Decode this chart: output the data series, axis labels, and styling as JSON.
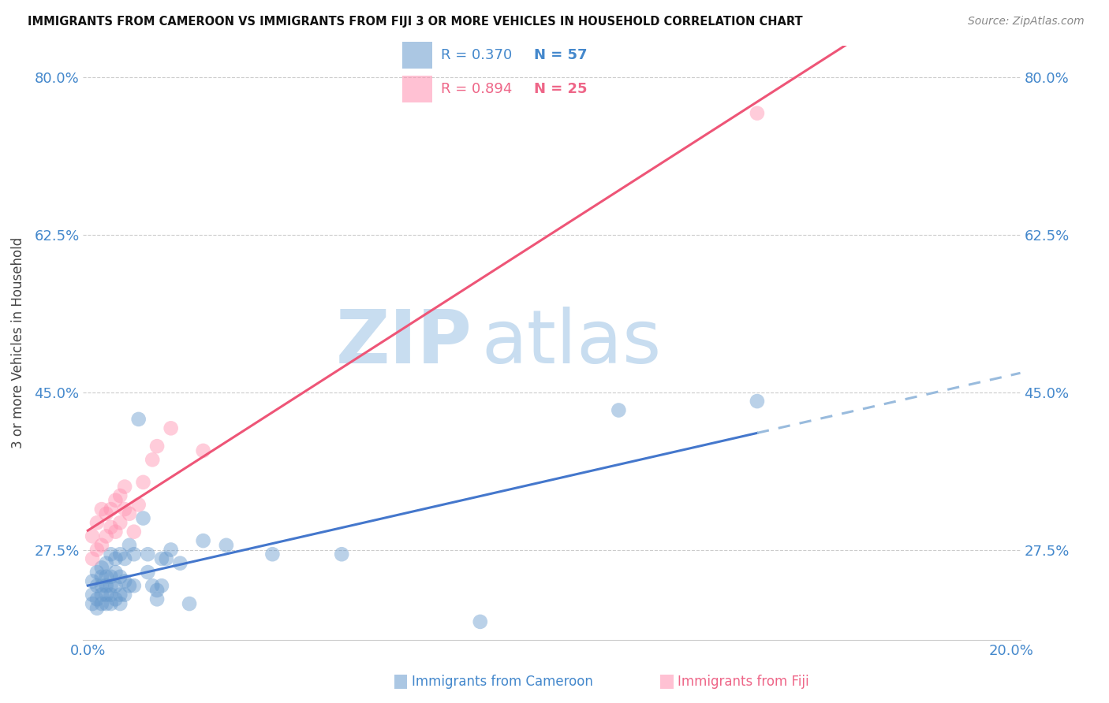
{
  "title": "IMMIGRANTS FROM CAMEROON VS IMMIGRANTS FROM FIJI 3 OR MORE VEHICLES IN HOUSEHOLD CORRELATION CHART",
  "source": "Source: ZipAtlas.com",
  "ylabel": "3 or more Vehicles in Household",
  "xlim": [
    -0.001,
    0.202
  ],
  "ylim": [
    0.175,
    0.835
  ],
  "yticks": [
    0.275,
    0.45,
    0.625,
    0.8
  ],
  "ytick_labels": [
    "27.5%",
    "45.0%",
    "62.5%",
    "80.0%"
  ],
  "xticks": [
    0.0,
    0.05,
    0.1,
    0.15,
    0.2
  ],
  "xtick_labels": [
    "0.0%",
    "",
    "",
    "",
    "20.0%"
  ],
  "cameroon_R": 0.37,
  "cameroon_N": 57,
  "fiji_R": 0.894,
  "fiji_N": 25,
  "cameroon_color": "#6699CC",
  "fiji_color": "#FF8FAF",
  "regression_blue": "#4477CC",
  "regression_pink": "#EE5577",
  "dash_color": "#99BBDD",
  "watermark_zip": "ZIP",
  "watermark_atlas": "atlas",
  "watermark_color": "#C8DDF0",
  "background_color": "#FFFFFF",
  "text_blue": "#4488CC",
  "text_pink": "#EE6688",
  "title_color": "#111111",
  "source_color": "#888888",
  "grid_color": "#CCCCCC",
  "cameroon_x": [
    0.001,
    0.001,
    0.001,
    0.002,
    0.002,
    0.002,
    0.002,
    0.003,
    0.003,
    0.003,
    0.003,
    0.003,
    0.004,
    0.004,
    0.004,
    0.004,
    0.004,
    0.005,
    0.005,
    0.005,
    0.005,
    0.005,
    0.006,
    0.006,
    0.006,
    0.006,
    0.007,
    0.007,
    0.007,
    0.007,
    0.008,
    0.008,
    0.008,
    0.009,
    0.009,
    0.01,
    0.01,
    0.011,
    0.012,
    0.013,
    0.013,
    0.014,
    0.015,
    0.015,
    0.016,
    0.016,
    0.017,
    0.018,
    0.02,
    0.022,
    0.025,
    0.03,
    0.04,
    0.055,
    0.085,
    0.115,
    0.145
  ],
  "cameroon_y": [
    0.215,
    0.225,
    0.24,
    0.21,
    0.22,
    0.235,
    0.25,
    0.215,
    0.225,
    0.235,
    0.245,
    0.255,
    0.215,
    0.225,
    0.235,
    0.245,
    0.26,
    0.215,
    0.225,
    0.235,
    0.245,
    0.27,
    0.22,
    0.235,
    0.25,
    0.265,
    0.215,
    0.225,
    0.245,
    0.27,
    0.225,
    0.24,
    0.265,
    0.235,
    0.28,
    0.235,
    0.27,
    0.42,
    0.31,
    0.25,
    0.27,
    0.235,
    0.23,
    0.22,
    0.235,
    0.265,
    0.265,
    0.275,
    0.26,
    0.215,
    0.285,
    0.28,
    0.27,
    0.27,
    0.195,
    0.43,
    0.44
  ],
  "fiji_x": [
    0.001,
    0.001,
    0.002,
    0.002,
    0.003,
    0.003,
    0.004,
    0.004,
    0.005,
    0.005,
    0.006,
    0.006,
    0.007,
    0.007,
    0.008,
    0.008,
    0.009,
    0.01,
    0.011,
    0.012,
    0.014,
    0.015,
    0.018,
    0.025,
    0.145
  ],
  "fiji_y": [
    0.265,
    0.29,
    0.275,
    0.305,
    0.28,
    0.32,
    0.29,
    0.315,
    0.3,
    0.32,
    0.295,
    0.33,
    0.305,
    0.335,
    0.32,
    0.345,
    0.315,
    0.295,
    0.325,
    0.35,
    0.375,
    0.39,
    0.41,
    0.385,
    0.76
  ]
}
